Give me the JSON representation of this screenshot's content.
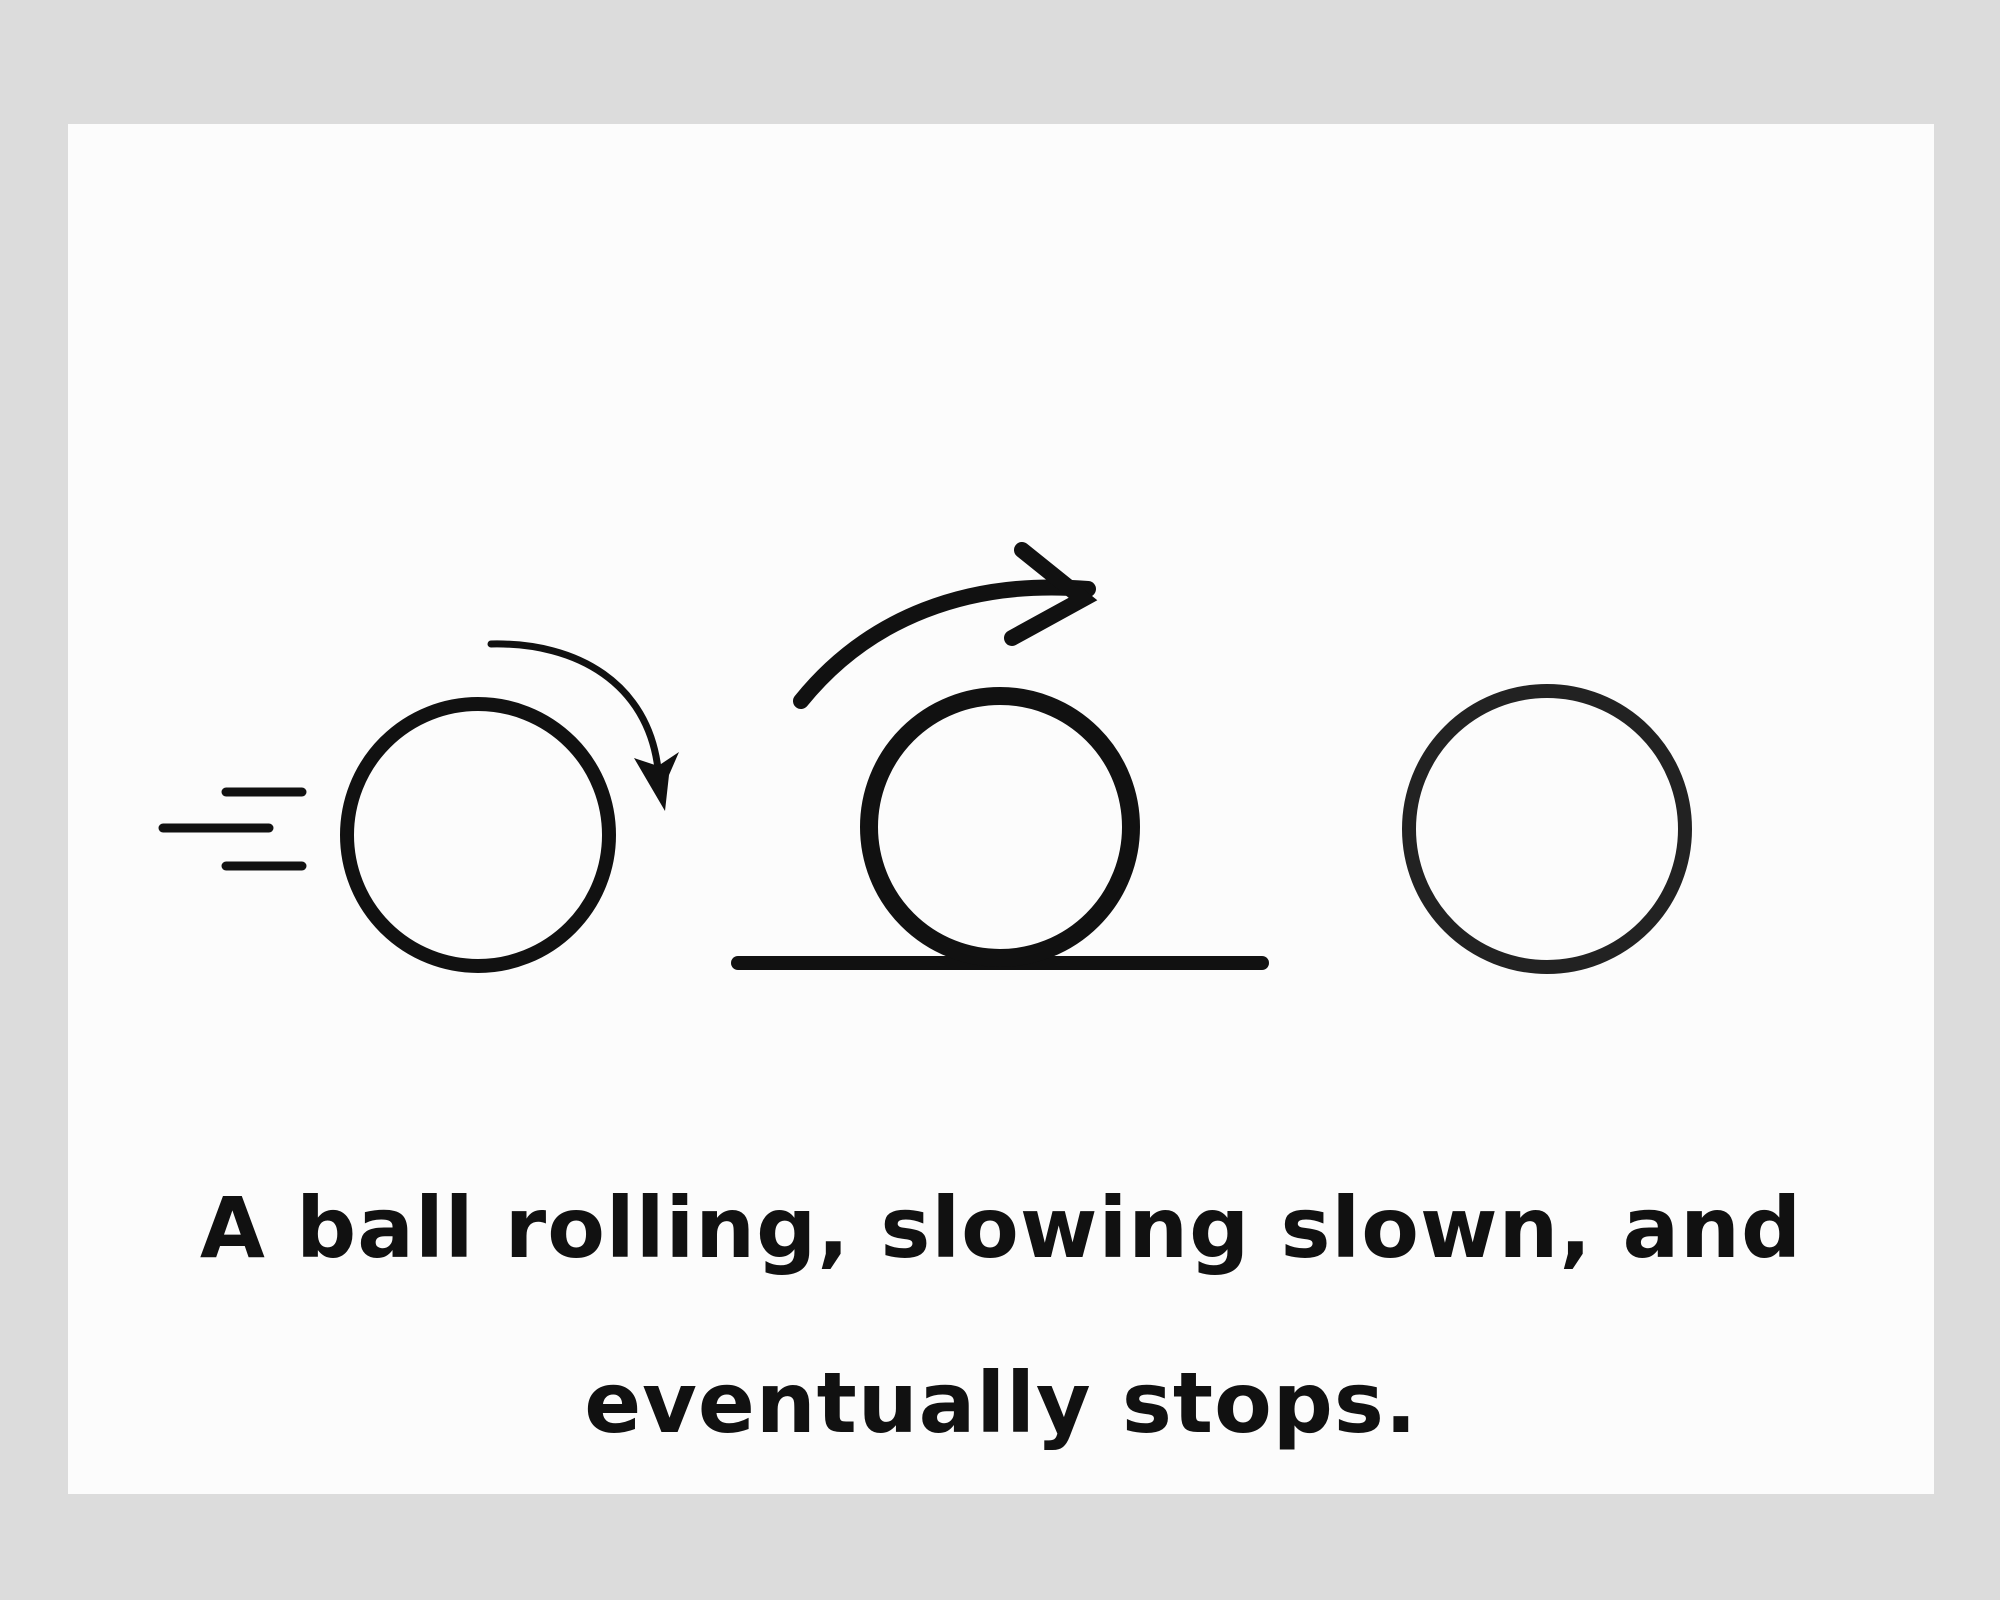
{
  "caption": {
    "line1": "A ball rolling, slowing slown, and",
    "line2": "eventually stops."
  },
  "colors": {
    "background": "#dcdcdc",
    "card": "#fcfcfc",
    "ink": "#111111",
    "ball3_ink": "#222222"
  },
  "icons": [
    "motion-lines-icon",
    "rotation-arrow-icon",
    "arc-arrow-icon",
    "ground-line-icon"
  ]
}
